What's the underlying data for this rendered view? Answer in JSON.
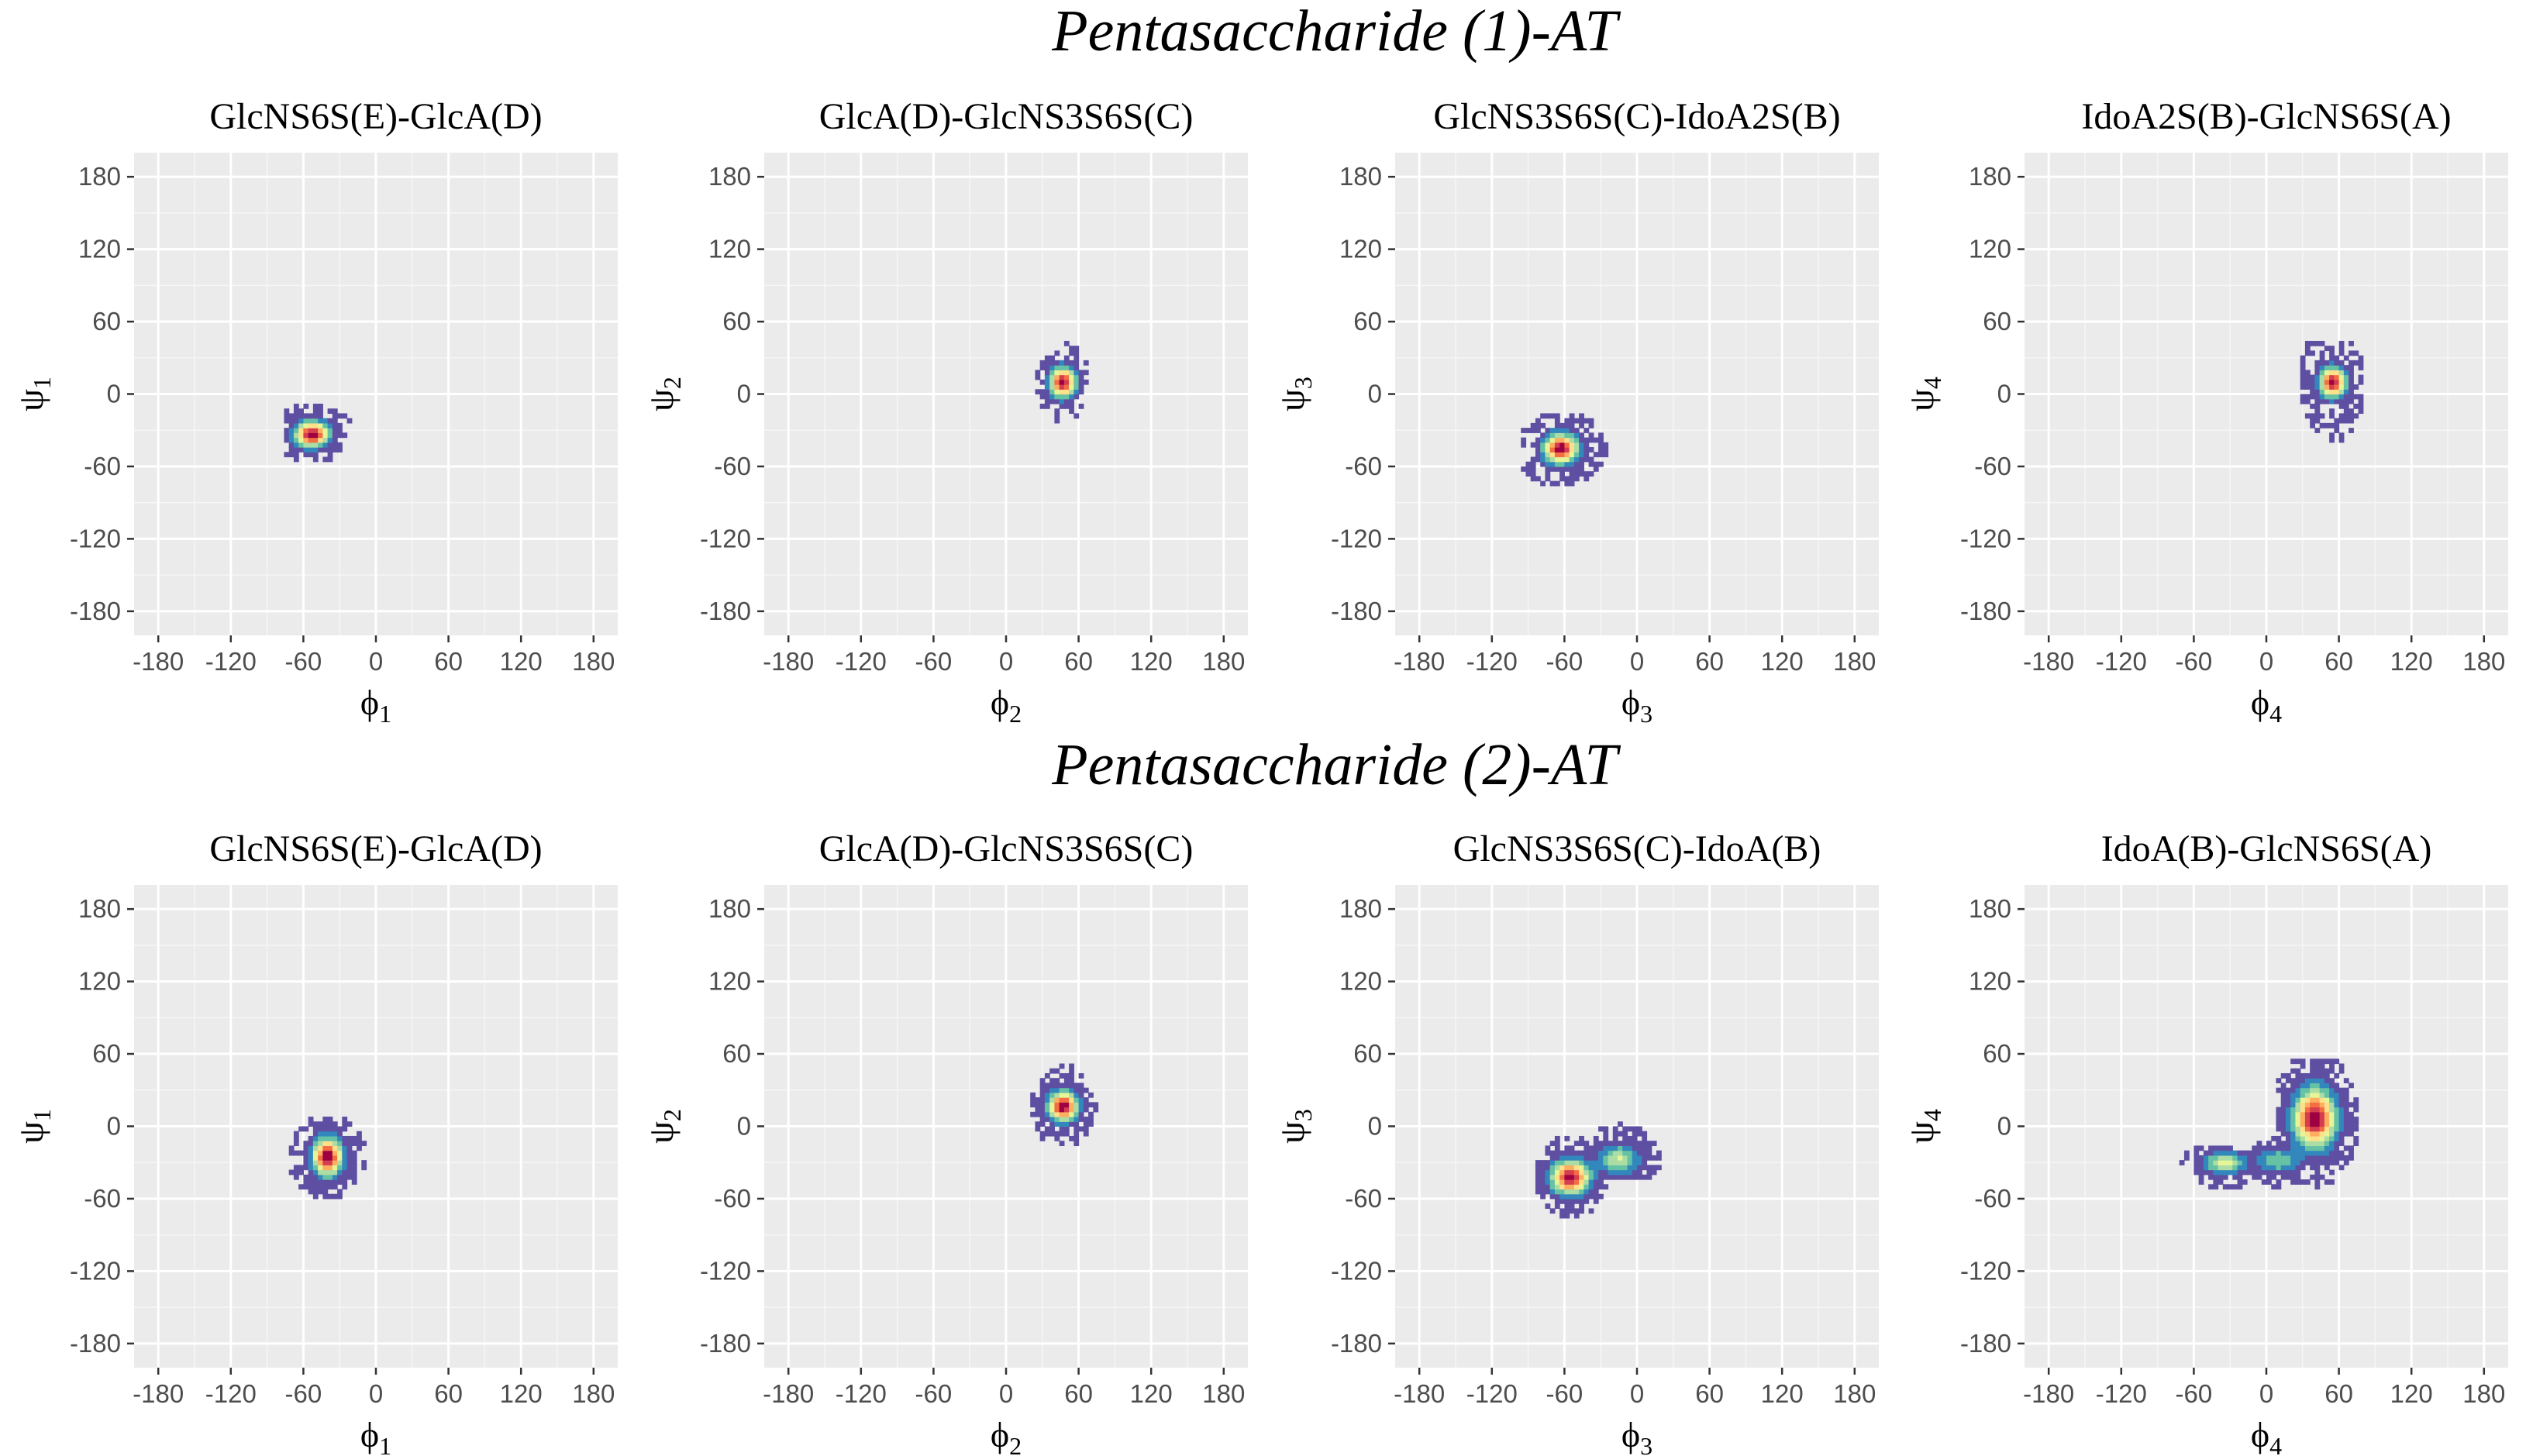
{
  "figure": {
    "row_titles": [
      "Pentasaccharide (1)-AT",
      "Pentasaccharide (2)-AT"
    ]
  },
  "colors": {
    "panel_background": "#ebebeb",
    "grid": "#ffffff",
    "density_scale": [
      "#5e4fa2",
      "#3288bd",
      "#66c2a5",
      "#abdda4",
      "#e6f598",
      "#fee08b",
      "#fdae61",
      "#f46d43",
      "#d53e4f",
      "#9e0142"
    ]
  },
  "chart_data": [
    {
      "type": "heatmap",
      "title": "GlcNS6S(E)-GlcA(D)",
      "row": 0,
      "col": 0,
      "xlabel": "ϕ",
      "xlabel_sub": "1",
      "ylabel": "ψ",
      "ylabel_sub": "1",
      "xlim": [
        -200,
        200
      ],
      "ylim": [
        -200,
        200
      ],
      "xticks": [
        -180,
        -120,
        -60,
        0,
        60,
        120,
        180
      ],
      "yticks": [
        -180,
        -120,
        -60,
        0,
        60,
        120,
        180
      ],
      "clusters": [
        {
          "phi": -53,
          "psi": -33,
          "sd_phi": 8,
          "sd_psi": 6,
          "weight": 1.0,
          "phi_range": [
            -75,
            -5
          ],
          "psi_range": [
            -60,
            -10
          ]
        }
      ]
    },
    {
      "type": "heatmap",
      "title": "GlcA(D)-GlcNS3S6S(C)",
      "row": 0,
      "col": 1,
      "xlabel": "ϕ",
      "xlabel_sub": "2",
      "ylabel": "ψ",
      "ylabel_sub": "2",
      "xlim": [
        -200,
        200
      ],
      "ylim": [
        -200,
        200
      ],
      "xticks": [
        -180,
        -120,
        -60,
        0,
        60,
        120,
        180
      ],
      "yticks": [
        -180,
        -120,
        -60,
        0,
        60,
        120,
        180
      ],
      "clusters": [
        {
          "phi": 47,
          "psi": 10,
          "sd_phi": 6,
          "sd_psi": 7,
          "weight": 1.0,
          "phi_range": [
            25,
            70
          ],
          "psi_range": [
            -22,
            45
          ]
        }
      ]
    },
    {
      "type": "heatmap",
      "title": "GlcNS3S6S(C)-IdoA2S(B)",
      "row": 0,
      "col": 2,
      "xlabel": "ϕ",
      "xlabel_sub": "3",
      "ylabel": "ψ",
      "ylabel_sub": "3",
      "xlim": [
        -200,
        200
      ],
      "ylim": [
        -200,
        200
      ],
      "xticks": [
        -180,
        -120,
        -60,
        0,
        60,
        120,
        180
      ],
      "yticks": [
        -180,
        -120,
        -60,
        0,
        60,
        120,
        180
      ],
      "clusters": [
        {
          "phi": -63,
          "psi": -45,
          "sd_phi": 8,
          "sd_psi": 7,
          "weight": 1.0,
          "phi_range": [
            -95,
            -20
          ],
          "psi_range": [
            -80,
            -15
          ]
        }
      ]
    },
    {
      "type": "heatmap",
      "title": "IdoA2S(B)-GlcNS6S(A)",
      "row": 0,
      "col": 3,
      "xlabel": "ϕ",
      "xlabel_sub": "4",
      "ylabel": "ψ",
      "ylabel_sub": "4",
      "xlim": [
        -200,
        200
      ],
      "ylim": [
        -200,
        200
      ],
      "xticks": [
        -180,
        -120,
        -60,
        0,
        60,
        120,
        180
      ],
      "yticks": [
        -180,
        -120,
        -60,
        0,
        60,
        120,
        180
      ],
      "clusters": [
        {
          "phi": 55,
          "psi": 10,
          "sd_phi": 6,
          "sd_psi": 7,
          "weight": 1.0,
          "phi_range": [
            25,
            80
          ],
          "psi_range": [
            -55,
            45
          ]
        }
      ]
    },
    {
      "type": "heatmap",
      "title": "GlcNS6S(E)-GlcA(D)",
      "row": 1,
      "col": 0,
      "xlabel": "ϕ",
      "xlabel_sub": "1",
      "ylabel": "ψ",
      "ylabel_sub": "1",
      "xlim": [
        -200,
        200
      ],
      "ylim": [
        -200,
        200
      ],
      "xticks": [
        -180,
        -120,
        -60,
        0,
        60,
        120,
        180
      ],
      "yticks": [
        -180,
        -120,
        -60,
        0,
        60,
        120,
        180
      ],
      "clusters": [
        {
          "phi": -40,
          "psi": -25,
          "sd_phi": 7,
          "sd_psi": 9,
          "weight": 1.0,
          "phi_range": [
            -70,
            -5
          ],
          "psi_range": [
            -65,
            8
          ]
        }
      ]
    },
    {
      "type": "heatmap",
      "title": "GlcA(D)-GlcNS3S6S(C)",
      "row": 1,
      "col": 1,
      "xlabel": "ϕ",
      "xlabel_sub": "2",
      "ylabel": "ψ",
      "ylabel_sub": "2",
      "xlim": [
        -200,
        200
      ],
      "ylim": [
        -200,
        200
      ],
      "xticks": [
        -180,
        -120,
        -60,
        0,
        60,
        120,
        180
      ],
      "yticks": [
        -180,
        -120,
        -60,
        0,
        60,
        120,
        180
      ],
      "clusters": [
        {
          "phi": 47,
          "psi": 17,
          "sd_phi": 7,
          "sd_psi": 7,
          "weight": 1.0,
          "phi_range": [
            20,
            75
          ],
          "psi_range": [
            -15,
            55
          ]
        }
      ]
    },
    {
      "type": "heatmap",
      "title": "GlcNS3S6S(C)-IdoA(B)",
      "row": 1,
      "col": 2,
      "xlabel": "ϕ",
      "xlabel_sub": "3",
      "ylabel": "ψ",
      "ylabel_sub": "3",
      "xlim": [
        -200,
        200
      ],
      "ylim": [
        -200,
        200
      ],
      "xticks": [
        -180,
        -120,
        -60,
        0,
        60,
        120,
        180
      ],
      "yticks": [
        -180,
        -120,
        -60,
        0,
        60,
        120,
        180
      ],
      "clusters": [
        {
          "phi": -55,
          "psi": -42,
          "sd_phi": 9,
          "sd_psi": 8,
          "weight": 1.0,
          "phi_range": [
            -85,
            -25
          ],
          "psi_range": [
            -80,
            -10
          ]
        },
        {
          "phi": -15,
          "psi": -27,
          "sd_phi": 10,
          "sd_psi": 7,
          "weight": 0.35,
          "phi_range": [
            -40,
            30
          ],
          "psi_range": [
            -45,
            15
          ]
        }
      ]
    },
    {
      "type": "heatmap",
      "title": "IdoA(B)-GlcNS6S(A)",
      "row": 1,
      "col": 3,
      "xlabel": "ϕ",
      "xlabel_sub": "4",
      "ylabel": "ψ",
      "ylabel_sub": "4",
      "xlim": [
        -200,
        200
      ],
      "ylim": [
        -200,
        200
      ],
      "xticks": [
        -180,
        -120,
        -60,
        0,
        60,
        120,
        180
      ],
      "yticks": [
        -180,
        -120,
        -60,
        0,
        60,
        120,
        180
      ],
      "clusters": [
        {
          "phi": 40,
          "psi": 7,
          "sd_phi": 10,
          "sd_psi": 14,
          "weight": 1.0,
          "phi_range": [
            10,
            85
          ],
          "psi_range": [
            -60,
            55
          ]
        },
        {
          "phi": -35,
          "psi": -30,
          "sd_phi": 10,
          "sd_psi": 5,
          "weight": 0.4,
          "phi_range": [
            -80,
            -10
          ],
          "psi_range": [
            -60,
            -15
          ]
        },
        {
          "phi": 10,
          "psi": -28,
          "sd_phi": 10,
          "sd_psi": 6,
          "weight": 0.25,
          "phi_range": [
            -10,
            35
          ],
          "psi_range": [
            -55,
            -10
          ]
        }
      ]
    }
  ]
}
